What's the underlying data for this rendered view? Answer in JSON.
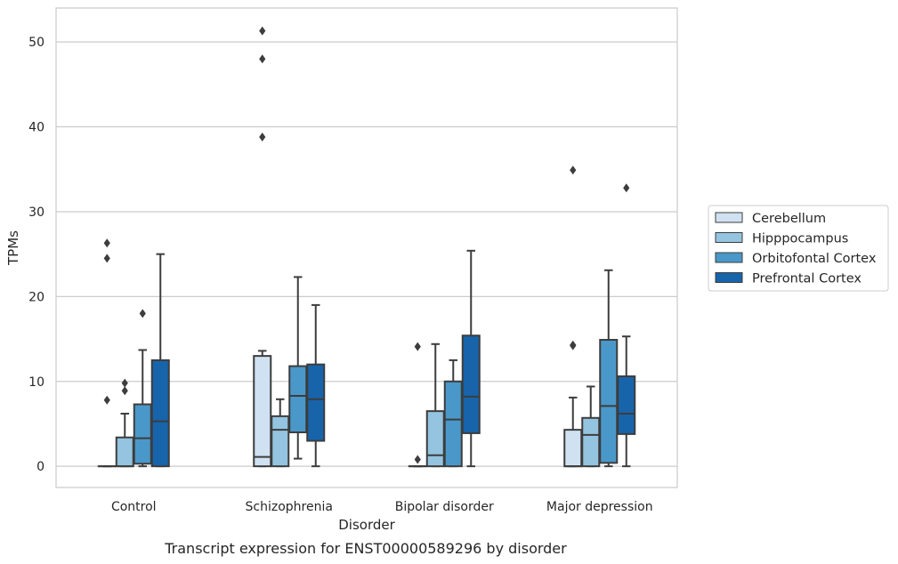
{
  "chart_data": {
    "type": "box",
    "xlabel": "Disorder",
    "ylabel": "TPMs",
    "caption": "Transcript expression for ENST00000589296 by disorder",
    "ylim": [
      -2.5,
      54
    ],
    "yticks": [
      0,
      10,
      20,
      30,
      40,
      50
    ],
    "grid": "horizontal",
    "legend_position": "right",
    "categories": [
      "Control",
      "Schizophrenia",
      "Bipolar disorder",
      "Major depression"
    ],
    "series": [
      {
        "name": "Cerebellum",
        "color": "#d0e1f2",
        "boxes": [
          {
            "whislo": 0,
            "q1": 0,
            "med": 0,
            "q3": 0,
            "whishi": 0,
            "fliers": [
              7.8,
              24.5,
              26.3
            ]
          },
          {
            "whislo": 0,
            "q1": 0,
            "med": 1.1,
            "q3": 13.0,
            "whishi": 13.6,
            "fliers": [
              38.8,
              48.0,
              51.3
            ]
          },
          {
            "whislo": 0,
            "q1": 0,
            "med": 0,
            "q3": 0,
            "whishi": 0,
            "fliers": [
              0.8,
              14.1
            ]
          },
          {
            "whislo": 0,
            "q1": 0,
            "med": 0,
            "q3": 4.3,
            "whishi": 8.1,
            "fliers": [
              14.2,
              14.3,
              34.9
            ]
          }
        ]
      },
      {
        "name": "Hipppocampus",
        "color": "#94c4df",
        "boxes": [
          {
            "whislo": 0,
            "q1": 0,
            "med": 0,
            "q3": 3.4,
            "whishi": 6.2,
            "fliers": [
              8.9,
              9.8
            ]
          },
          {
            "whislo": 0,
            "q1": 0,
            "med": 4.3,
            "q3": 5.9,
            "whishi": 7.9,
            "fliers": []
          },
          {
            "whislo": 0,
            "q1": 0,
            "med": 1.3,
            "q3": 6.5,
            "whishi": 14.4,
            "fliers": []
          },
          {
            "whislo": 0,
            "q1": 0,
            "med": 3.7,
            "q3": 5.7,
            "whishi": 9.4,
            "fliers": []
          }
        ]
      },
      {
        "name": "Orbitofontal Cortex",
        "color": "#4a98c9",
        "boxes": [
          {
            "whislo": 0,
            "q1": 0.3,
            "med": 3.3,
            "q3": 7.3,
            "whishi": 13.7,
            "fliers": [
              18.0
            ]
          },
          {
            "whislo": 0.9,
            "q1": 4.0,
            "med": 8.3,
            "q3": 11.8,
            "whishi": 22.3,
            "fliers": []
          },
          {
            "whislo": 0,
            "q1": 0,
            "med": 5.5,
            "q3": 10.0,
            "whishi": 12.5,
            "fliers": []
          },
          {
            "whislo": 0,
            "q1": 0.4,
            "med": 7.1,
            "q3": 14.9,
            "whishi": 23.1,
            "fliers": []
          }
        ]
      },
      {
        "name": "Prefrontal Cortex",
        "color": "#1764ab",
        "boxes": [
          {
            "whislo": 0,
            "q1": 0,
            "med": 5.3,
            "q3": 12.5,
            "whishi": 25.0,
            "fliers": []
          },
          {
            "whislo": 0,
            "q1": 3.0,
            "med": 7.9,
            "q3": 12.0,
            "whishi": 19.0,
            "fliers": []
          },
          {
            "whislo": 0,
            "q1": 3.9,
            "med": 8.2,
            "q3": 15.4,
            "whishi": 25.4,
            "fliers": []
          },
          {
            "whislo": 0,
            "q1": 3.8,
            "med": 6.2,
            "q3": 10.6,
            "whishi": 15.3,
            "fliers": [
              32.8
            ]
          }
        ]
      }
    ]
  }
}
